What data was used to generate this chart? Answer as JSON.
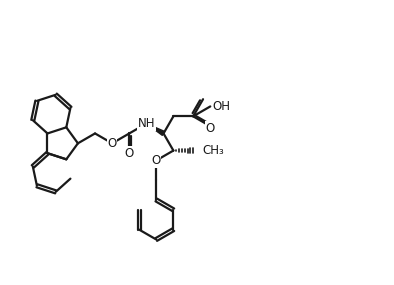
{
  "bg_color": "#ffffff",
  "line_color": "#1a1a1a",
  "line_width": 1.6,
  "font_size": 8.5,
  "fig_width": 3.94,
  "fig_height": 2.85,
  "dpi": 100,
  "bl": 0.48,
  "xlim": [
    0,
    9.5
  ],
  "ylim": [
    0,
    6.8
  ]
}
